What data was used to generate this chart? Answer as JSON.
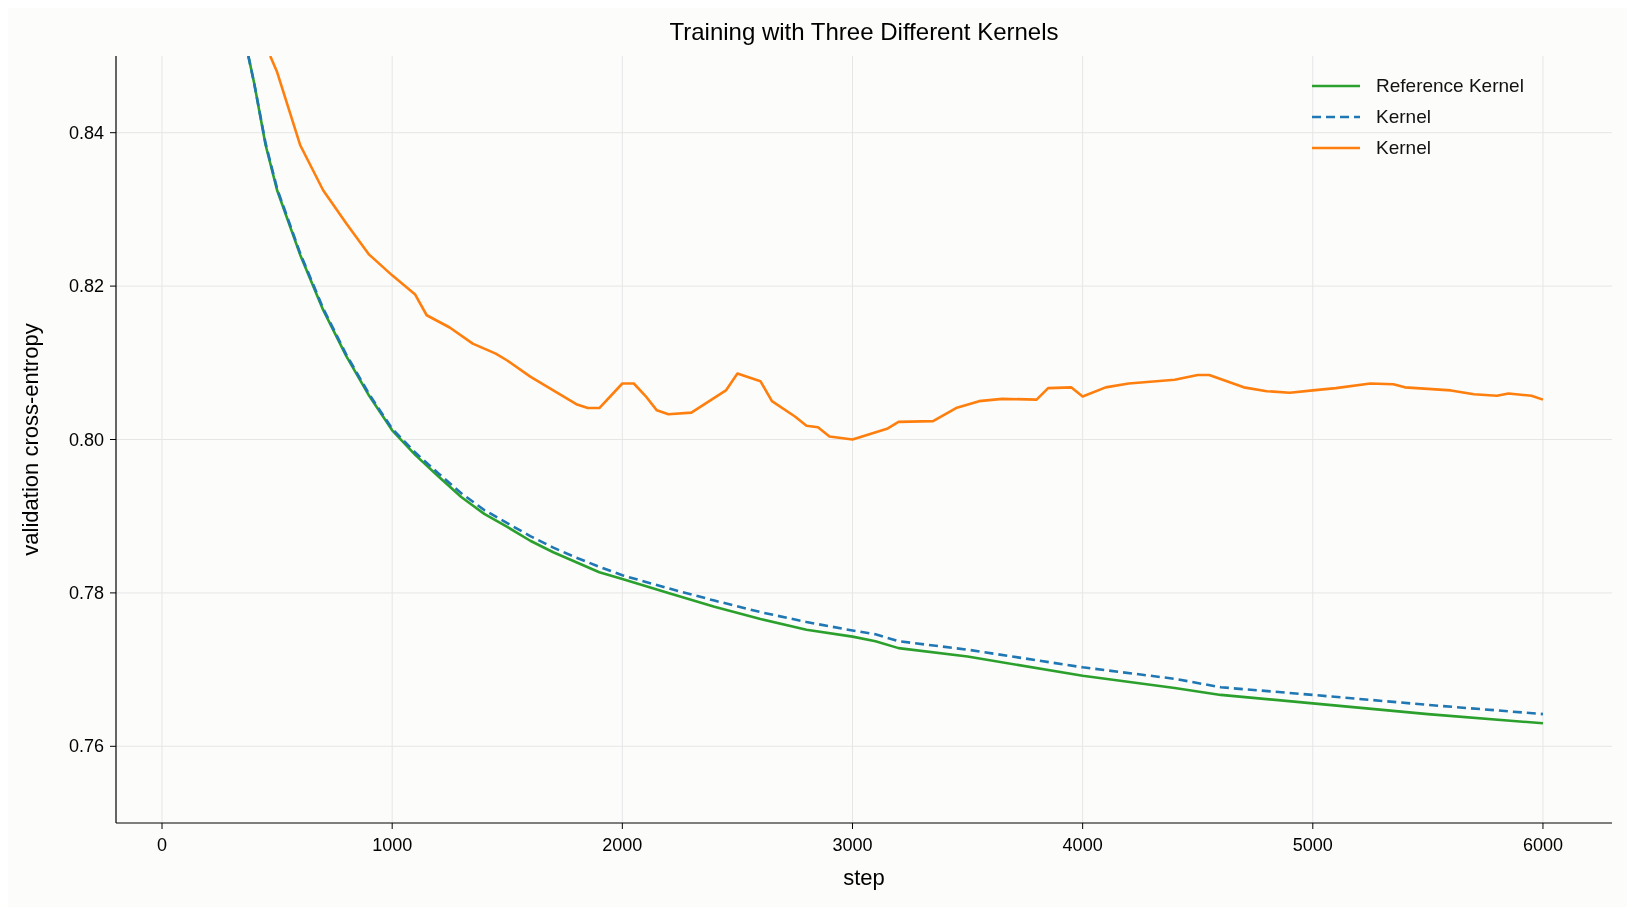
{
  "chart_data": {
    "type": "line",
    "title": "Training with Three Different Kernels",
    "xlabel": "step",
    "ylabel": "validation cross-entropy",
    "xlim": [
      -200,
      6300
    ],
    "xticks": [
      0,
      1000,
      2000,
      3000,
      4000,
      5000,
      6000
    ],
    "ylim": [
      0.75,
      0.85
    ],
    "yticks": [
      0.76,
      0.78,
      {
        "value": 0.8,
        "label": "0.80"
      },
      0.82,
      0.84
    ],
    "grid": true,
    "legend": "top right",
    "marker": "none",
    "series": [
      {
        "name": "Reference Kernel",
        "color": "#2ca02c",
        "line_style": "solid",
        "x": [
          375,
          400,
          450,
          500,
          600,
          700,
          800,
          900,
          1000,
          1100,
          1200,
          1300,
          1400,
          1500,
          1600,
          1700,
          1800,
          1900,
          2000,
          2200,
          2400,
          2600,
          2800,
          3000,
          3100,
          3200,
          3500,
          4000,
          4400,
          4600,
          5000,
          5500,
          6000
        ],
        "values": [
          0.85,
          0.8465,
          0.8384,
          0.8325,
          0.8241,
          0.8169,
          0.8109,
          0.8057,
          0.8012,
          0.798,
          0.7952,
          0.7925,
          0.7903,
          0.7886,
          0.7868,
          0.7853,
          0.784,
          0.7827,
          0.7818,
          0.78,
          0.7782,
          0.7766,
          0.7752,
          0.7743,
          0.7737,
          0.7728,
          0.7717,
          0.7692,
          0.7676,
          0.7667,
          0.7656,
          0.7642,
          0.763
        ]
      },
      {
        "name": "Kernel",
        "color": "#1f77b4",
        "line_style": "dashed",
        "x": [
          375,
          400,
          450,
          500,
          600,
          700,
          800,
          900,
          1000,
          1100,
          1200,
          1300,
          1400,
          1500,
          1600,
          1700,
          1800,
          1900,
          2000,
          2200,
          2400,
          2600,
          2800,
          3000,
          3100,
          3200,
          3500,
          4000,
          4400,
          4600,
          5000,
          5500,
          6000
        ],
        "values": [
          0.85,
          0.8465,
          0.8386,
          0.8327,
          0.8243,
          0.8171,
          0.8111,
          0.8059,
          0.8014,
          0.7983,
          0.7956,
          0.793,
          0.7908,
          0.7891,
          0.7874,
          0.7859,
          0.7846,
          0.7834,
          0.7823,
          0.7806,
          0.779,
          0.7775,
          0.7762,
          0.7751,
          0.7746,
          0.7737,
          0.7726,
          0.7703,
          0.7688,
          0.7677,
          0.7667,
          0.7654,
          0.7642
        ]
      },
      {
        "name": "Kernel",
        "color": "#ff7f0e",
        "line_style": "solid",
        "x": [
          470,
          500,
          600,
          700,
          800,
          900,
          1000,
          1100,
          1150,
          1250,
          1350,
          1450,
          1500,
          1600,
          1700,
          1800,
          1850,
          1900,
          2000,
          2050,
          2100,
          2150,
          2200,
          2300,
          2450,
          2500,
          2600,
          2650,
          2750,
          2800,
          2850,
          2900,
          3000,
          3150,
          3200,
          3350,
          3450,
          3550,
          3650,
          3800,
          3850,
          3950,
          4000,
          4100,
          4200,
          4400,
          4500,
          4550,
          4700,
          4800,
          4900,
          5000,
          5100,
          5250,
          5350,
          5400,
          5600,
          5700,
          5800,
          5850,
          5950,
          6000
        ],
        "values": [
          0.85,
          0.8479,
          0.8384,
          0.8325,
          0.8282,
          0.8241,
          0.8214,
          0.8189,
          0.8162,
          0.8146,
          0.8125,
          0.8112,
          0.8103,
          0.8082,
          0.8064,
          0.8046,
          0.8041,
          0.8041,
          0.8073,
          0.8073,
          0.8057,
          0.8038,
          0.8033,
          0.8035,
          0.8064,
          0.8086,
          0.8076,
          0.805,
          0.803,
          0.8018,
          0.8016,
          0.8004,
          0.8,
          0.8014,
          0.8023,
          0.8024,
          0.8041,
          0.805,
          0.8053,
          0.8052,
          0.8067,
          0.8068,
          0.8056,
          0.8068,
          0.8073,
          0.8078,
          0.8084,
          0.8084,
          0.8068,
          0.8063,
          0.8061,
          0.8064,
          0.8067,
          0.8073,
          0.8072,
          0.8068,
          0.8064,
          0.8059,
          0.8057,
          0.806,
          0.8057,
          0.8052
        ]
      }
    ]
  }
}
